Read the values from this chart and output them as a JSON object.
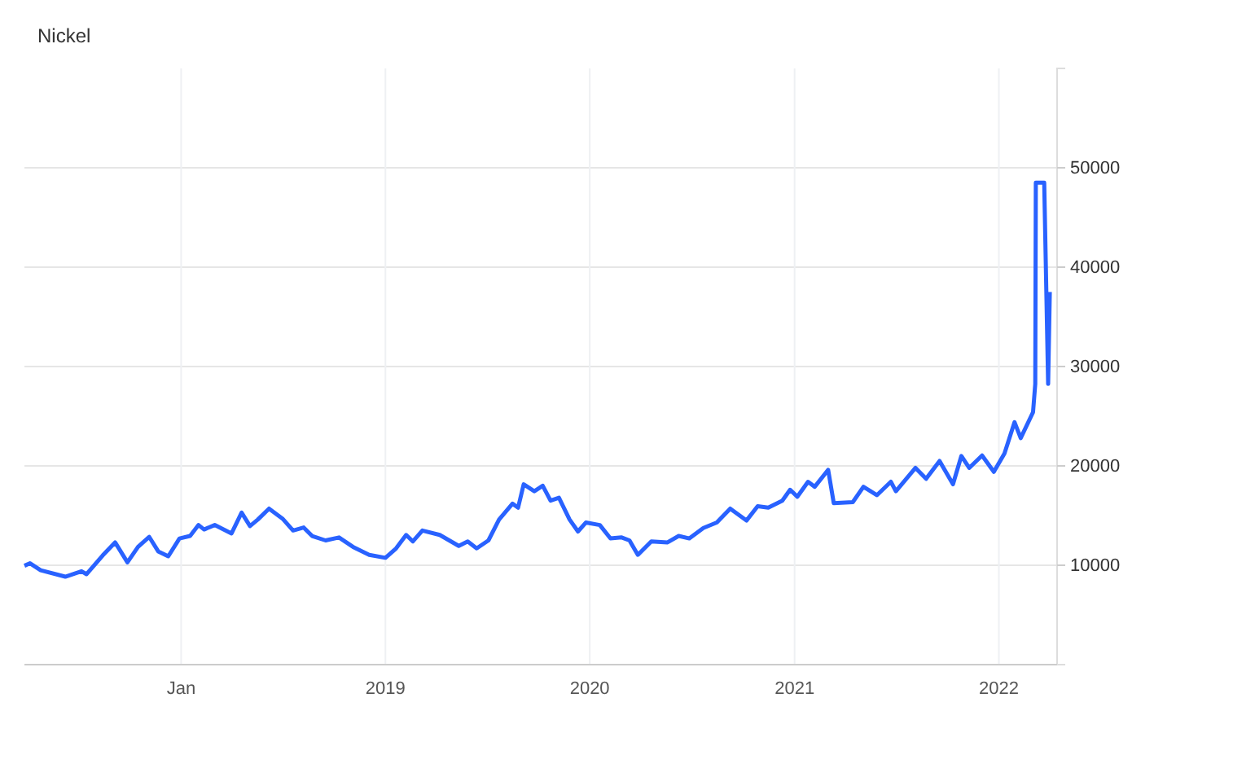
{
  "chart_data": {
    "type": "line",
    "title": "Nickel",
    "x": [
      "2017-03-27",
      "2017-04-06",
      "2017-04-25",
      "2017-06-08",
      "2017-07-07",
      "2017-07-16",
      "2017-08-14",
      "2017-09-05",
      "2017-09-27",
      "2017-10-16",
      "2017-11-05",
      "2017-11-21",
      "2017-12-09",
      "2017-12-29",
      "2018-01-17",
      "2018-02-01",
      "2018-02-11",
      "2018-03-02",
      "2018-04-01",
      "2018-04-19",
      "2018-05-04",
      "2018-05-18",
      "2018-06-07",
      "2018-07-01",
      "2018-07-20",
      "2018-08-08",
      "2018-08-23",
      "2018-09-16",
      "2018-10-10",
      "2018-11-04",
      "2018-12-03",
      "2019-01-01",
      "2019-01-20",
      "2019-02-07",
      "2019-02-19",
      "2019-03-08",
      "2019-04-08",
      "2019-05-12",
      "2019-05-28",
      "2019-06-13",
      "2019-07-04",
      "2019-07-23",
      "2019-08-16",
      "2019-08-26",
      "2019-09-05",
      "2019-09-24",
      "2019-10-09",
      "2019-10-23",
      "2019-11-07",
      "2019-11-26",
      "2019-12-11",
      "2019-12-25",
      "2020-01-19",
      "2020-02-07",
      "2020-02-27",
      "2020-03-12",
      "2020-03-27",
      "2020-04-20",
      "2020-05-19",
      "2020-06-08",
      "2020-06-27",
      "2020-07-22",
      "2020-08-15",
      "2020-09-08",
      "2020-10-07",
      "2020-10-27",
      "2020-11-15",
      "2020-12-10",
      "2020-12-24",
      "2021-01-06",
      "2021-01-25",
      "2021-02-06",
      "2021-03-02",
      "2021-03-12",
      "2021-04-15",
      "2021-05-04",
      "2021-05-28",
      "2021-06-22",
      "2021-07-01",
      "2021-08-05",
      "2021-08-24",
      "2021-09-17",
      "2021-10-11",
      "2021-10-26",
      "2021-11-09",
      "2021-12-02",
      "2021-12-23",
      "2022-01-11",
      "2022-01-29",
      "2022-02-09",
      "2022-03-03",
      "2022-03-07",
      "2022-03-08",
      "2022-03-23",
      "2022-03-30",
      "2022-04-02"
    ],
    "series": [
      {
        "color": "#2962ff",
        "values": [
          9950,
          10200,
          9500,
          8850,
          9400,
          9100,
          11000,
          12300,
          10300,
          11850,
          12850,
          11400,
          10900,
          12700,
          12950,
          14050,
          13600,
          14050,
          13200,
          15300,
          13950,
          14600,
          15700,
          14700,
          13500,
          13800,
          12950,
          12500,
          12800,
          11850,
          11050,
          10750,
          11700,
          13050,
          12400,
          13500,
          13050,
          11950,
          12400,
          11700,
          12500,
          14600,
          16200,
          15800,
          18150,
          17450,
          18000,
          16500,
          16800,
          14600,
          13400,
          14300,
          14050,
          12700,
          12800,
          12500,
          11050,
          12400,
          12300,
          12950,
          12700,
          13750,
          14300,
          15700,
          14500,
          15950,
          15800,
          16500,
          17600,
          16900,
          18400,
          17900,
          19600,
          16250,
          16350,
          17900,
          17050,
          18400,
          17450,
          19800,
          18700,
          20500,
          18150,
          21000,
          19800,
          21050,
          19400,
          21250,
          24400,
          22800,
          25400,
          28250,
          48500,
          48500,
          28250,
          37500
        ]
      }
    ],
    "xlim": [
      "2017-03-27",
      "2022-04-15"
    ],
    "xticks": [
      {
        "value": "2018-01-01",
        "label": "Jan"
      },
      {
        "value": "2019-01-01",
        "label": "2019"
      },
      {
        "value": "2020-01-01",
        "label": "2020"
      },
      {
        "value": "2021-01-01",
        "label": "2021"
      },
      {
        "value": "2022-01-01",
        "label": "2022"
      }
    ],
    "ylim": [
      0,
      60000
    ],
    "yticks": [
      10000,
      20000,
      30000,
      40000,
      50000
    ],
    "grid": true,
    "marker": "none",
    "line_style": "solid"
  }
}
